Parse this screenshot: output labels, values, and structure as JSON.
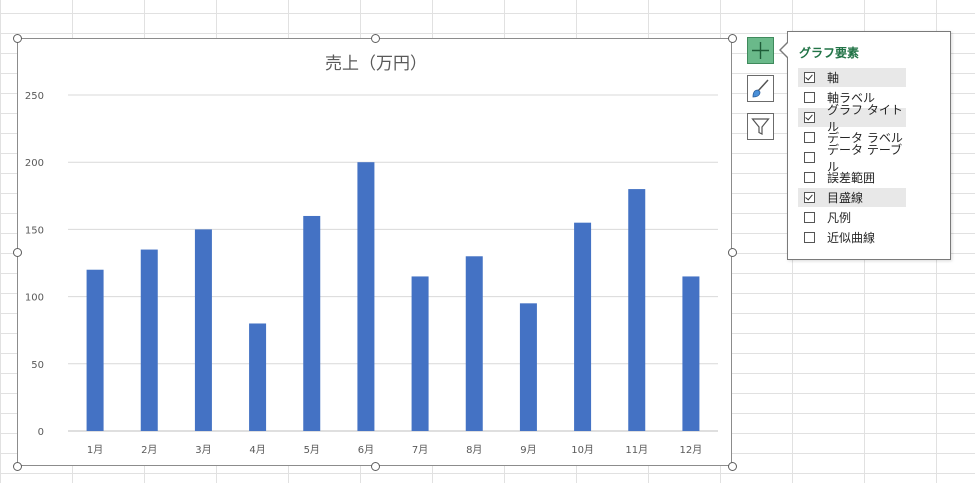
{
  "chart_data": {
    "type": "bar",
    "title": "売上（万円）",
    "categories": [
      "1月",
      "2月",
      "3月",
      "4月",
      "5月",
      "6月",
      "7月",
      "8月",
      "9月",
      "10月",
      "11月",
      "12月"
    ],
    "series": [
      {
        "values": [
          120,
          135,
          150,
          80,
          160,
          200,
          115,
          130,
          95,
          155,
          180,
          115
        ],
        "color": "#4472c4"
      }
    ],
    "yticks": [
      0,
      50,
      100,
      150,
      200,
      250
    ],
    "ylim": [
      0,
      250
    ],
    "grid": true,
    "legend": false
  },
  "side_buttons": [
    {
      "id": "chart-elements",
      "icon": "plus-icon",
      "active": true
    },
    {
      "id": "chart-styles",
      "icon": "paintbrush-icon",
      "active": false
    },
    {
      "id": "chart-filters",
      "icon": "funnel-icon",
      "active": false
    }
  ],
  "elements_panel": {
    "title": "グラフ要素",
    "items": [
      {
        "label": "軸",
        "checked": true
      },
      {
        "label": "軸ラベル",
        "checked": false
      },
      {
        "label": "グラフ タイトル",
        "checked": true
      },
      {
        "label": "データ ラベル",
        "checked": false
      },
      {
        "label": "データ テーブル",
        "checked": false
      },
      {
        "label": "誤差範囲",
        "checked": false
      },
      {
        "label": "目盛線",
        "checked": true
      },
      {
        "label": "凡例",
        "checked": false
      },
      {
        "label": "近似曲線",
        "checked": false
      }
    ]
  },
  "colors": {
    "bar": "#4472c4",
    "accent": "#217346",
    "active_button": "#6ab98a"
  }
}
